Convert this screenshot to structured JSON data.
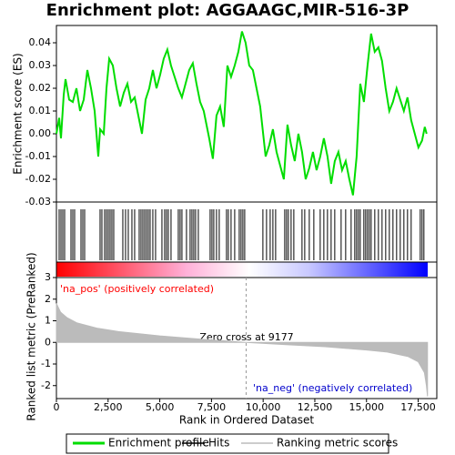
{
  "chart_data": [
    {
      "type": "line",
      "title": "Enrichment plot: AGGAAGC,MIR-516-3P",
      "ylabel": "Enrichment score (ES)",
      "x": [
        0,
        132,
        220,
        352,
        440,
        616,
        792,
        968,
        1144,
        1320,
        1496,
        1672,
        1848,
        2024,
        2112,
        2288,
        2420,
        2552,
        2728,
        2904,
        3080,
        3256,
        3432,
        3608,
        3784,
        3960,
        4136,
        4312,
        4488,
        4664,
        4840,
        5016,
        5192,
        5368,
        5544,
        5720,
        5896,
        6072,
        6248,
        6424,
        6600,
        6776,
        6952,
        7128,
        7392,
        7568,
        7744,
        7920,
        8096,
        8272,
        8448,
        8624,
        8800,
        8976,
        9152,
        9328,
        9504,
        9680,
        9856,
        10120,
        10296,
        10472,
        10648,
        10824,
        11000,
        11176,
        11352,
        11528,
        11704,
        11880,
        12056,
        12232,
        12408,
        12584,
        12760,
        12936,
        13112,
        13288,
        13464,
        13640,
        13816,
        13992,
        14168,
        14344,
        14520,
        14696,
        14872,
        15048,
        15224,
        15400,
        15576,
        15752,
        15928,
        16104,
        16280,
        16456,
        16632,
        16808,
        16984,
        17160,
        17336,
        17512,
        17688,
        17820,
        17908
      ],
      "series": [
        {
          "name": "Enrichment profile",
          "color": "#00dd00",
          "values": [
            0,
            0.007,
            -0.002,
            0.017,
            0.024,
            0.015,
            0.014,
            0.02,
            0.01,
            0.015,
            0.028,
            0.02,
            0.01,
            -0.01,
            0.002,
            0,
            0.02,
            0.033,
            0.03,
            0.02,
            0.012,
            0.018,
            0.022,
            0.014,
            0.016,
            0.008,
            0,
            0.015,
            0.02,
            0.028,
            0.02,
            0.026,
            0.033,
            0.037,
            0.03,
            0.025,
            0.02,
            0.016,
            0.022,
            0.028,
            0.031,
            0.022,
            0.014,
            0.01,
            -0.002,
            -0.011,
            0.008,
            0.012,
            0.003,
            0.03,
            0.025,
            0.03,
            0.036,
            0.045,
            0.04,
            0.03,
            0.028,
            0.02,
            0.012,
            -0.01,
            -0.005,
            0.002,
            -0.008,
            -0.014,
            -0.02,
            0.004,
            -0.005,
            -0.012,
            0,
            -0.008,
            -0.02,
            -0.015,
            -0.008,
            -0.016,
            -0.01,
            -0.002,
            -0.01,
            -0.022,
            -0.012,
            -0.008,
            -0.016,
            -0.012,
            -0.02,
            -0.027,
            -0.01,
            0.022,
            0.014,
            0.03,
            0.044,
            0.036,
            0.038,
            0.032,
            0.02,
            0.01,
            0.014,
            0.02,
            0.015,
            0.01,
            0.016,
            0.006,
            0,
            -0.006,
            -0.003,
            0.003,
            0
          ]
        }
      ],
      "xlim": [
        0,
        18400
      ],
      "ylim": [
        -0.03,
        0.0476
      ],
      "yticks": [
        -0.03,
        -0.02,
        -0.01,
        {
          "value": 0,
          "label": "0.00"
        },
        0.01,
        0.02,
        0.03,
        0.04
      ]
    },
    {
      "type": "hits",
      "series": [
        {
          "name": "Hits",
          "color": "#000000",
          "x": [
            132,
            220,
            308,
            396,
            704,
            792,
            880,
            1188,
            1276,
            1364,
            2112,
            2200,
            2332,
            2420,
            2508,
            2596,
            2684,
            2772,
            3212,
            3344,
            3476,
            3652,
            3784,
            4004,
            4092,
            4180,
            4268,
            4356,
            4444,
            4532,
            4664,
            4796,
            5104,
            5236,
            5324,
            5412,
            5544,
            5896,
            5984,
            6072,
            6292,
            6468,
            6556,
            6644,
            6732,
            6864,
            7436,
            7524,
            7612,
            7744,
            7876,
            8228,
            8316,
            8448,
            8624,
            8844,
            8932,
            9020,
            9108,
            9988,
            10164,
            10340,
            10472,
            10604,
            11044,
            11132,
            11220,
            11352,
            11484,
            11880,
            12012,
            12232,
            12452,
            12760,
            12936,
            13112,
            13288,
            13464,
            13772,
            13992,
            14256,
            14432,
            14520,
            14608,
            14696,
            14872,
            14960,
            15048,
            15136,
            15224,
            15400,
            15576,
            15752,
            15928,
            16104,
            16280,
            16456,
            16632,
            16808,
            16984,
            17160,
            17600,
            17688,
            17776
          ]
        }
      ],
      "xlim": [
        0,
        18400
      ]
    },
    {
      "type": "area",
      "ylabel": "Ranked list metric (PreRanked)",
      "xlabel": "Rank in Ordered Dataset",
      "x": [
        0,
        200,
        500,
        1000,
        2000,
        3000,
        5000,
        7000,
        9177,
        11000,
        13000,
        15000,
        16000,
        17000,
        17500,
        17800,
        17900,
        17950
      ],
      "series": [
        {
          "name": "Ranking metric scores",
          "color": "#bbbbbb",
          "values": [
            1.8,
            1.4,
            1.15,
            0.9,
            0.65,
            0.5,
            0.3,
            0.15,
            0,
            -0.1,
            -0.2,
            -0.35,
            -0.45,
            -0.65,
            -0.9,
            -1.4,
            -2.0,
            -2.5
          ]
        }
      ],
      "xlim": [
        0,
        18400
      ],
      "ylim": [
        -2.6,
        3
      ],
      "yticks": [
        -2,
        -1,
        0,
        1,
        2,
        3
      ],
      "xticks": [
        0,
        {
          "value": 2500,
          "label": "2,500"
        },
        {
          "value": 5000,
          "label": "5,000"
        },
        {
          "value": 7500,
          "label": "7,500"
        },
        {
          "value": 10000,
          "label": "10,000"
        },
        {
          "value": 12500,
          "label": "12,500"
        },
        {
          "value": 15000,
          "label": "15,000"
        },
        {
          "value": 17500,
          "label": "17,500"
        }
      ],
      "zero_cross": 9177,
      "annotations": [
        "'na_pos' (positively correlated)",
        "Zero cross at 9177",
        "'na_neg' (negatively correlated)"
      ]
    }
  ]
}
